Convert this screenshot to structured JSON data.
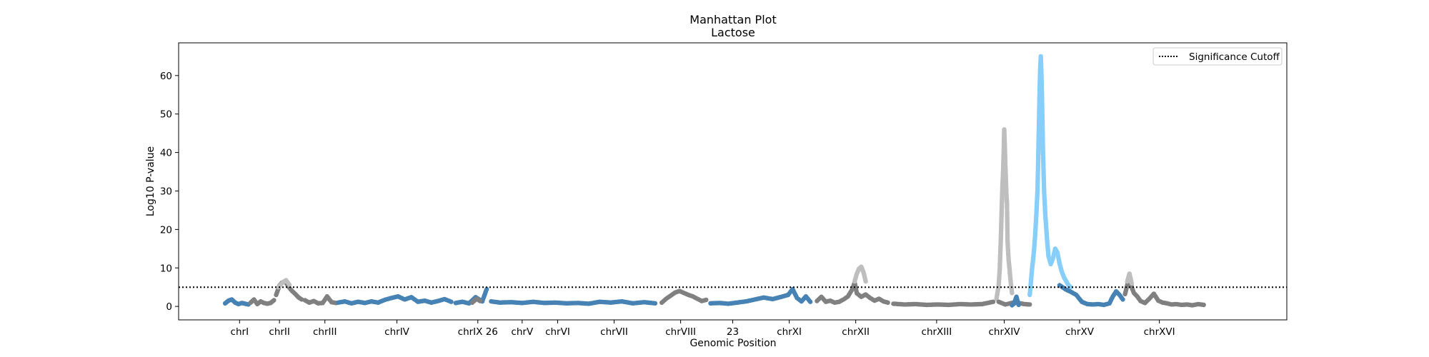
{
  "chart_data": {
    "type": "scatter",
    "title": "Manhattan Plot",
    "subtitle": "Lactose",
    "xlabel": "Genomic Position",
    "ylabel": "Log10 P-value",
    "ylim": [
      -3.5,
      68.5
    ],
    "yticks": [
      0,
      10,
      20,
      30,
      40,
      50,
      60
    ],
    "grid": false,
    "legend": {
      "placement": "top-right",
      "entries": [
        {
          "label": "Significance Cutoff",
          "style": "dotted",
          "color": "#000000"
        }
      ]
    },
    "significance_cutoff": 5,
    "colors": {
      "steelblue": "#4682b4",
      "gray": "#808080",
      "silver": "#bebebe",
      "lightskyblue": "#87cefa"
    },
    "xticks": [
      {
        "label": "chrI",
        "x": 5.5
      },
      {
        "label": "chrII",
        "x": 9.1
      },
      {
        "label": "chrIII",
        "x": 13.2
      },
      {
        "label": "chrIV",
        "x": 19.7
      },
      {
        "label": "chrIX 26",
        "x": 27.0
      },
      {
        "label": "chrV",
        "x": 31.0
      },
      {
        "label": "chrVI",
        "x": 34.2
      },
      {
        "label": "chrVII",
        "x": 39.3
      },
      {
        "label": "chrVIII",
        "x": 45.3
      },
      {
        "label": "23",
        "x": 50.0
      },
      {
        "label": "chrXI",
        "x": 55.1
      },
      {
        "label": "chrXII",
        "x": 61.1
      },
      {
        "label": "chrXIII",
        "x": 68.4
      },
      {
        "label": "chrXIV",
        "x": 74.5
      },
      {
        "label": "chrXV",
        "x": 81.3
      },
      {
        "label": "chrXVI",
        "x": 88.5
      }
    ],
    "series": [
      {
        "color": "steelblue",
        "points": [
          [
            4.2,
            0.8
          ],
          [
            4.5,
            1.5
          ],
          [
            4.8,
            1.8
          ],
          [
            5.1,
            1.0
          ],
          [
            5.4,
            0.6
          ],
          [
            5.7,
            0.9
          ],
          [
            6.0,
            0.7
          ],
          [
            6.3,
            0.5
          ]
        ]
      },
      {
        "color": "gray",
        "points": [
          [
            6.5,
            1.0
          ],
          [
            6.8,
            1.8
          ],
          [
            7.1,
            0.6
          ],
          [
            7.4,
            1.3
          ],
          [
            7.7,
            0.9
          ],
          [
            8.0,
            0.7
          ],
          [
            8.3,
            0.9
          ],
          [
            8.6,
            1.6
          ]
        ]
      },
      {
        "color": "gray",
        "points": [
          [
            8.8,
            3.0
          ],
          [
            9.1,
            5.4
          ],
          [
            9.3,
            6.1
          ],
          [
            9.6,
            6.6
          ],
          [
            9.9,
            5.2
          ],
          [
            10.2,
            4.1
          ],
          [
            10.5,
            3.3
          ],
          [
            10.8,
            2.4
          ],
          [
            11.1,
            1.8
          ]
        ]
      },
      {
        "color": "silver",
        "points": [
          [
            9.0,
            5.0
          ],
          [
            9.4,
            6.2
          ],
          [
            9.7,
            6.8
          ],
          [
            10.0,
            5.6
          ]
        ]
      },
      {
        "color": "gray",
        "points": [
          [
            11.4,
            1.6
          ],
          [
            11.8,
            1.0
          ],
          [
            12.2,
            1.4
          ],
          [
            12.6,
            0.8
          ],
          [
            13.0,
            0.9
          ],
          [
            13.4,
            2.6
          ],
          [
            13.8,
            1.1
          ],
          [
            14.2,
            0.9
          ]
        ]
      },
      {
        "color": "steelblue",
        "points": [
          [
            14.4,
            1.0
          ],
          [
            15.0,
            1.3
          ],
          [
            15.6,
            0.8
          ],
          [
            16.2,
            1.2
          ],
          [
            16.8,
            0.9
          ],
          [
            17.4,
            1.3
          ],
          [
            18.0,
            1.0
          ],
          [
            18.6,
            1.7
          ],
          [
            19.2,
            2.2
          ],
          [
            19.8,
            2.6
          ],
          [
            20.4,
            1.8
          ],
          [
            21.0,
            2.4
          ],
          [
            21.6,
            1.2
          ],
          [
            22.2,
            1.5
          ],
          [
            22.8,
            1.0
          ],
          [
            23.4,
            1.4
          ],
          [
            24.0,
            1.9
          ],
          [
            24.6,
            1.2
          ]
        ]
      },
      {
        "color": "steelblue",
        "points": [
          [
            25.0,
            0.9
          ],
          [
            25.6,
            1.2
          ],
          [
            26.2,
            0.8
          ],
          [
            26.8,
            2.4
          ],
          [
            27.4,
            1.3
          ],
          [
            27.8,
            4.5
          ]
        ]
      },
      {
        "color": "gray",
        "points": [
          [
            26.5,
            1.0
          ],
          [
            26.9,
            2.0
          ],
          [
            27.2,
            1.4
          ]
        ]
      },
      {
        "color": "steelblue",
        "points": [
          [
            28.2,
            1.3
          ],
          [
            29.0,
            1.0
          ],
          [
            30.0,
            1.1
          ],
          [
            31.0,
            0.9
          ],
          [
            32.0,
            1.2
          ],
          [
            33.0,
            0.9
          ],
          [
            34.0,
            1.0
          ],
          [
            35.0,
            0.8
          ],
          [
            36.0,
            0.9
          ],
          [
            37.0,
            0.7
          ],
          [
            38.0,
            1.2
          ],
          [
            39.0,
            1.0
          ],
          [
            40.0,
            1.3
          ],
          [
            41.0,
            0.8
          ],
          [
            42.0,
            1.1
          ],
          [
            43.0,
            0.8
          ]
        ]
      },
      {
        "color": "gray",
        "points": [
          [
            43.6,
            1.0
          ],
          [
            44.0,
            2.0
          ],
          [
            44.4,
            2.8
          ],
          [
            44.8,
            3.6
          ],
          [
            45.2,
            4.0
          ],
          [
            45.6,
            3.5
          ],
          [
            46.0,
            3.0
          ],
          [
            46.4,
            2.6
          ],
          [
            46.8,
            2.0
          ],
          [
            47.2,
            1.4
          ],
          [
            47.6,
            1.7
          ]
        ]
      },
      {
        "color": "steelblue",
        "points": [
          [
            48.0,
            0.8
          ],
          [
            48.8,
            0.9
          ],
          [
            49.6,
            0.7
          ],
          [
            50.4,
            1.0
          ],
          [
            51.2,
            1.3
          ],
          [
            52.0,
            1.8
          ],
          [
            52.8,
            2.3
          ],
          [
            53.6,
            1.9
          ],
          [
            54.4,
            2.5
          ],
          [
            55.0,
            3.0
          ],
          [
            55.4,
            4.5
          ],
          [
            55.8,
            2.2
          ],
          [
            56.2,
            1.3
          ],
          [
            56.6,
            2.6
          ],
          [
            57.0,
            1.2
          ]
        ]
      },
      {
        "color": "gray",
        "points": [
          [
            57.6,
            1.4
          ],
          [
            58.0,
            2.5
          ],
          [
            58.4,
            1.2
          ],
          [
            58.8,
            1.5
          ],
          [
            59.2,
            1.0
          ],
          [
            59.6,
            1.2
          ],
          [
            60.0,
            1.8
          ],
          [
            60.4,
            2.6
          ],
          [
            60.8,
            4.5
          ],
          [
            61.0,
            6.2
          ],
          [
            61.2,
            3.4
          ],
          [
            61.6,
            2.5
          ],
          [
            62.0,
            3.1
          ],
          [
            62.4,
            2.2
          ],
          [
            62.8,
            1.5
          ],
          [
            63.2,
            2.0
          ],
          [
            63.6,
            1.3
          ],
          [
            64.0,
            1.0
          ]
        ]
      },
      {
        "color": "silver",
        "points": [
          [
            61.0,
            6.5
          ],
          [
            61.2,
            8.5
          ],
          [
            61.4,
            9.8
          ],
          [
            61.6,
            10.3
          ],
          [
            61.8,
            8.9
          ],
          [
            62.0,
            6.5
          ]
        ]
      },
      {
        "color": "gray",
        "points": [
          [
            64.5,
            0.7
          ],
          [
            65.5,
            0.5
          ],
          [
            66.5,
            0.6
          ],
          [
            67.5,
            0.4
          ],
          [
            68.5,
            0.5
          ],
          [
            69.5,
            0.4
          ],
          [
            70.5,
            0.6
          ],
          [
            71.5,
            0.5
          ],
          [
            72.5,
            0.6
          ],
          [
            73.0,
            0.9
          ],
          [
            73.5,
            1.2
          ]
        ]
      },
      {
        "color": "silver",
        "points": [
          [
            73.8,
            2.0
          ],
          [
            74.0,
            5.5
          ],
          [
            74.1,
            10.0
          ],
          [
            74.2,
            18.0
          ],
          [
            74.3,
            28.0
          ],
          [
            74.35,
            32.0
          ],
          [
            74.4,
            35.0
          ],
          [
            74.45,
            40.0
          ],
          [
            74.5,
            46.0
          ],
          [
            74.55,
            42.0
          ],
          [
            74.6,
            37.0
          ],
          [
            74.65,
            33.0
          ],
          [
            74.7,
            29.0
          ],
          [
            74.75,
            26.5
          ],
          [
            74.8,
            17.0
          ],
          [
            74.9,
            12.0
          ],
          [
            75.0,
            9.0
          ],
          [
            75.1,
            6.0
          ],
          [
            75.2,
            3.5
          ]
        ]
      },
      {
        "color": "gray",
        "points": [
          [
            74.0,
            1.2
          ],
          [
            74.6,
            0.5
          ],
          [
            75.3,
            1.0
          ],
          [
            75.8,
            0.9
          ],
          [
            76.3,
            0.6
          ],
          [
            76.8,
            0.5
          ]
        ]
      },
      {
        "color": "steelblue",
        "points": [
          [
            75.2,
            0.3
          ],
          [
            75.4,
            0.8
          ],
          [
            75.6,
            2.5
          ],
          [
            75.8,
            0.4
          ]
        ]
      },
      {
        "color": "lightskyblue",
        "points": [
          [
            76.8,
            3.0
          ],
          [
            76.9,
            6.0
          ],
          [
            77.0,
            9.5
          ],
          [
            77.1,
            12.0
          ],
          [
            77.2,
            15.0
          ],
          [
            77.3,
            19.0
          ],
          [
            77.4,
            24.0
          ],
          [
            77.5,
            30.0
          ],
          [
            77.55,
            36.0
          ],
          [
            77.6,
            43.0
          ],
          [
            77.65,
            50.0
          ],
          [
            77.7,
            57.0
          ],
          [
            77.75,
            62.0
          ],
          [
            77.8,
            65.0
          ],
          [
            77.85,
            61.0
          ],
          [
            77.9,
            55.0
          ],
          [
            77.95,
            48.0
          ],
          [
            78.0,
            40.0
          ],
          [
            78.1,
            30.0
          ],
          [
            78.2,
            24.0
          ],
          [
            78.3,
            20.0
          ],
          [
            78.4,
            16.0
          ],
          [
            78.5,
            13.0
          ],
          [
            78.7,
            11.0
          ],
          [
            78.9,
            12.5
          ],
          [
            79.1,
            15.0
          ],
          [
            79.3,
            14.0
          ],
          [
            79.5,
            11.0
          ],
          [
            79.7,
            9.0
          ],
          [
            79.9,
            7.5
          ],
          [
            80.1,
            6.5
          ],
          [
            80.3,
            5.5
          ],
          [
            80.5,
            5.0
          ]
        ]
      },
      {
        "color": "steelblue",
        "points": [
          [
            79.5,
            5.5
          ],
          [
            80.0,
            4.5
          ],
          [
            80.5,
            3.8
          ],
          [
            81.0,
            3.0
          ],
          [
            81.5,
            1.2
          ],
          [
            82.0,
            0.6
          ],
          [
            82.5,
            0.5
          ],
          [
            83.0,
            0.6
          ],
          [
            83.5,
            0.4
          ],
          [
            84.0,
            0.8
          ],
          [
            84.3,
            2.6
          ],
          [
            84.6,
            3.9
          ],
          [
            84.9,
            3.0
          ],
          [
            85.2,
            1.8
          ]
        ]
      },
      {
        "color": "gray",
        "points": [
          [
            85.4,
            3.2
          ],
          [
            85.6,
            5.5
          ],
          [
            85.8,
            8.0
          ],
          [
            86.0,
            5.0
          ],
          [
            86.2,
            3.5
          ],
          [
            86.5,
            2.6
          ],
          [
            86.8,
            1.4
          ],
          [
            87.2,
            0.9
          ],
          [
            87.6,
            2.0
          ],
          [
            88.0,
            3.3
          ],
          [
            88.4,
            1.5
          ],
          [
            88.8,
            1.0
          ],
          [
            89.2,
            0.8
          ],
          [
            89.6,
            0.5
          ],
          [
            90.0,
            0.6
          ],
          [
            90.5,
            0.4
          ],
          [
            91.0,
            0.5
          ],
          [
            91.5,
            0.3
          ],
          [
            92.0,
            0.6
          ],
          [
            92.5,
            0.4
          ]
        ]
      },
      {
        "color": "silver",
        "points": [
          [
            85.6,
            6.5
          ],
          [
            85.8,
            8.5
          ],
          [
            86.0,
            6.0
          ]
        ]
      }
    ]
  }
}
